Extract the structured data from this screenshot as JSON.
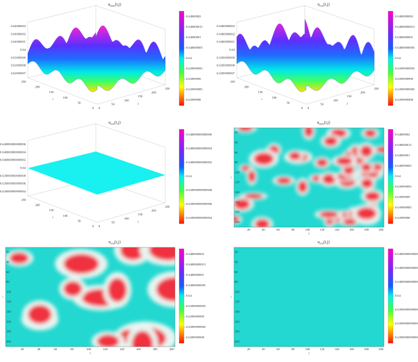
{
  "panels": [
    {
      "title": {
        "base": "u",
        "sub": "num",
        "args": "(i,j)"
      },
      "colorbar": [
        "0.64000002",
        "0.640000015",
        "0.64000001",
        "0.640000005",
        "0.64",
        "0.639999995",
        "0.63999999",
        "0.639999985",
        "0.63999998"
      ],
      "z_ticks": [
        "0.64000003",
        "0.64000002",
        "0.64000001",
        "0.64",
        "0.63999999",
        "0.63999998",
        "0.63999997"
      ],
      "i_ticks": [
        "250",
        "200",
        "150",
        "100",
        "50",
        "0"
      ],
      "j_ticks": [
        "0",
        "50",
        "100",
        "150",
        "200",
        "250"
      ],
      "x_label": "j",
      "y_label": "i"
    },
    {
      "title": {
        "base": "u",
        "sub": "exa",
        "args": "(i,j)"
      },
      "colorbar": [
        "0.6400000002",
        "0.64000000015",
        "0.6400000001",
        "0.64000000005",
        "0.64",
        "0.63999999995",
        "0.6399999999",
        "0.63999999985",
        "0.6399999998"
      ],
      "z_ticks": [
        "0.6400000003",
        "0.6400000002",
        "0.6400000001",
        "0.64",
        "0.6399999999",
        "0.6399999998",
        "0.6399999997"
      ],
      "i_ticks": [
        "250",
        "200",
        "150",
        "100",
        "50",
        "0"
      ],
      "j_ticks": [
        "0",
        "50",
        "100",
        "150",
        "200",
        "250"
      ],
      "x_label": "j",
      "y_label": "i"
    },
    {
      "title": {
        "base": "u",
        "sub": "exa",
        "args": "(i,j)"
      },
      "colorbar": [
        "0.640000000000006",
        "0.640000000000004",
        "0.640000000000002",
        "0.64",
        "0.639999999999998",
        "0.639999999999996",
        "0.639999999999994"
      ],
      "z_ticks": [
        "0.640000000000006",
        "0.640000000000004",
        "0.640000000000002",
        "0.64",
        "0.639999999999998",
        "0.639999999999996",
        "0.639999999999994"
      ],
      "i_ticks": [
        "250",
        "200",
        "150",
        "100",
        "50",
        "0"
      ],
      "j_ticks": [
        "0",
        "50",
        "100",
        "150",
        "200",
        "250"
      ],
      "x_label": "j",
      "y_label": "i"
    },
    {
      "title": {
        "base": "u",
        "sub": "num",
        "args": "(i,j)"
      },
      "colorbar": [
        "0.64000002",
        "0.640000015",
        "0.64000001",
        "0.640000005",
        "0.64",
        "0.639999995",
        "0.63999999",
        "0.639999985",
        "0.63999998"
      ],
      "i_ticks": [
        "20",
        "40",
        "60",
        "80",
        "100",
        "120",
        "140",
        "160",
        "180",
        "200"
      ],
      "j_ticks": [
        "20",
        "40",
        "60",
        "80",
        "100",
        "120",
        "140",
        "160",
        "180",
        "200"
      ],
      "x_label": "j",
      "y_label": "i"
    },
    {
      "title": {
        "base": "u",
        "sub": "exa",
        "args": "(i,j)"
      },
      "colorbar": [
        "0.6400000002",
        "0.64000000015",
        "0.6400000001",
        "0.64000000005",
        "0.64",
        "0.63999999995",
        "0.6399999999",
        "0.63999999985",
        "0.6399999998"
      ],
      "i_ticks": [
        "20",
        "40",
        "60",
        "80",
        "100",
        "120",
        "140",
        "160",
        "180",
        "200"
      ],
      "j_ticks": [
        "20",
        "40",
        "60",
        "80",
        "100",
        "120",
        "140",
        "160",
        "180",
        "200"
      ],
      "x_label": "j",
      "y_label": "i"
    },
    {
      "title": {
        "base": "u",
        "sub": "exa",
        "args": "(i,j)"
      },
      "colorbar": [
        "0.640000000000006",
        "0.640000000000004",
        "0.640000000000002",
        "0.64",
        "0.639999999999998",
        "0.639999999999996",
        "0.639999999999994"
      ],
      "i_ticks": [
        "20",
        "40",
        "60",
        "80",
        "100",
        "120",
        "140",
        "160",
        "180",
        "200"
      ],
      "j_ticks": [
        "20",
        "40",
        "60",
        "80",
        "100",
        "120",
        "140",
        "160",
        "180",
        "200"
      ],
      "x_label": "j",
      "y_label": "i"
    }
  ]
}
